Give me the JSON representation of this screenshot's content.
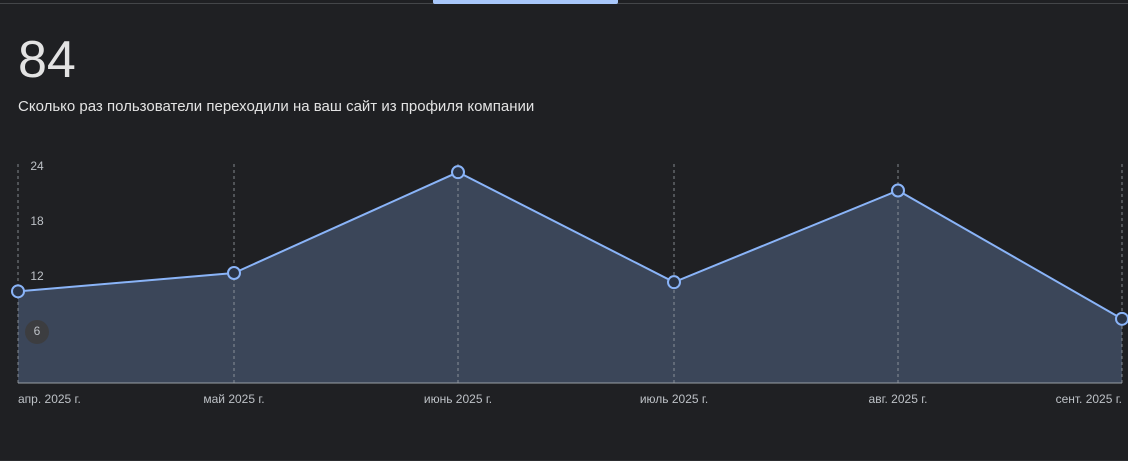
{
  "summary": {
    "total": "84",
    "description": "Сколько раз пользователи переходили на ваш сайт из профиля компании"
  },
  "colors": {
    "background": "#1f2023",
    "line": "#8ab4f8",
    "area": "#3b4659",
    "active_tab": "#a8c7fa"
  },
  "chart_data": {
    "type": "area",
    "categories": [
      "апр. 2025 г.",
      "май 2025 г.",
      "июнь 2025 г.",
      "июль 2025 г.",
      "авг. 2025 г.",
      "сент. 2025 г."
    ],
    "series": [
      {
        "values": [
          10,
          12,
          23,
          11,
          21,
          7
        ]
      }
    ],
    "yticks": [
      6,
      12,
      18,
      24
    ],
    "ylim": [
      0,
      24
    ],
    "grid": "vertical dashed",
    "legend": "none"
  }
}
